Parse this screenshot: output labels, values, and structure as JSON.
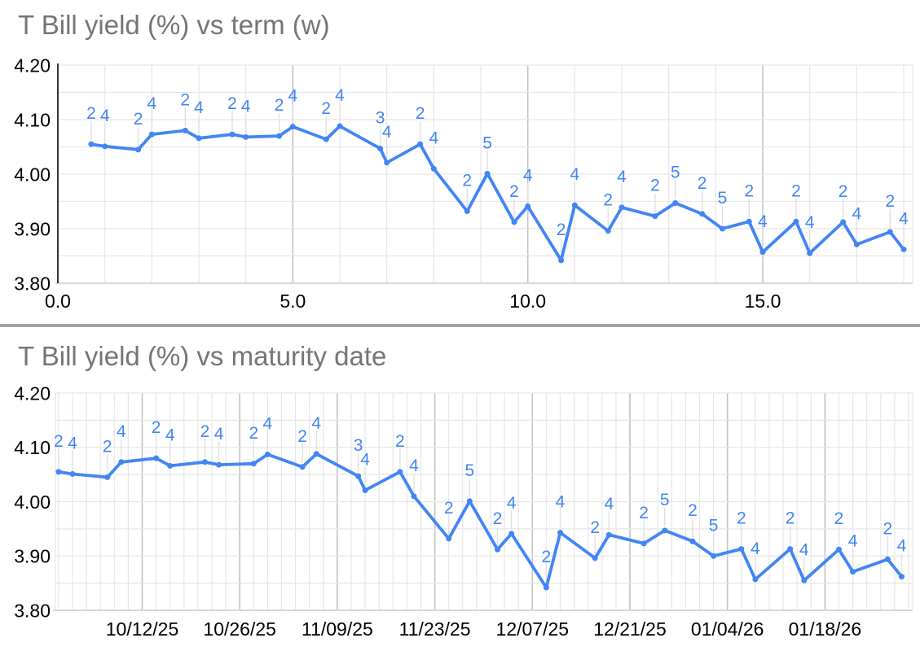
{
  "page": {
    "background": "#ffffff"
  },
  "colors": {
    "series": "#4285f4",
    "point_label": "#4285f4",
    "title": "#757575",
    "tick_label": "#000000",
    "grid_minor": "#e6e6e6",
    "grid_major": "#c3c3c3",
    "bottom_axis": "#d9d9d9",
    "zero_axis": "#212121",
    "leader_line": "#e0e0e0",
    "divider": "#a0a0a0"
  },
  "charts": [
    {
      "title": "T Bill yield (%) vs term (w)",
      "chart_data": {
        "type": "line",
        "xlabel": "term (w)",
        "ylabel": "T Bill yield (%)",
        "xlim": [
          0,
          18.2
        ],
        "ylim": [
          3.8,
          4.2
        ],
        "grid": true,
        "x_grid_step": 1,
        "y_grid_step": 0.05,
        "x_ticks": [
          0,
          5,
          10,
          15
        ],
        "x_tick_labels": [
          "0.0",
          "5.0",
          "10.0",
          "15.0"
        ],
        "y_ticks": [
          4.2,
          4.1,
          4.0,
          3.9,
          3.8
        ],
        "y_tick_labels": [
          "4.20",
          "4.10",
          "4.00",
          "3.90",
          "3.80"
        ],
        "x": [
          0.71,
          1.0,
          1.71,
          2.0,
          2.71,
          3.0,
          3.71,
          4.0,
          4.71,
          5.0,
          5.71,
          6.0,
          6.86,
          7.0,
          7.71,
          8.0,
          8.71,
          9.14,
          9.71,
          10.0,
          10.71,
          11.0,
          11.71,
          12.0,
          12.71,
          13.14,
          13.71,
          14.14,
          14.71,
          15.0,
          15.71,
          16.0,
          16.71,
          17.0,
          17.71,
          18.0
        ],
        "y": [
          4.055,
          4.051,
          4.045,
          4.073,
          4.08,
          4.066,
          4.073,
          4.068,
          4.07,
          4.087,
          4.064,
          4.088,
          4.047,
          4.021,
          4.055,
          4.01,
          3.932,
          4.001,
          3.912,
          3.941,
          3.842,
          3.943,
          3.896,
          3.939,
          3.923,
          3.947,
          3.927,
          3.9,
          3.913,
          3.857,
          3.913,
          3.855,
          3.912,
          3.871,
          3.894,
          3.862
        ],
        "point_labels": [
          "2",
          "4",
          "2",
          "4",
          "2",
          "4",
          "2",
          "4",
          "2",
          "4",
          "2",
          "4",
          "3",
          "4",
          "2",
          "4",
          "2",
          "5",
          "2",
          "4",
          "2",
          "4",
          "2",
          "4",
          "2",
          "5",
          "2",
          "5",
          "2",
          "4",
          "2",
          "4",
          "2",
          "4",
          "2",
          "4"
        ]
      }
    },
    {
      "title": "T Bill yield (%) vs maturity date",
      "chart_data": {
        "type": "line",
        "xlabel": "maturity date",
        "ylabel": "T Bill yield (%)",
        "ylim": [
          3.8,
          4.2
        ],
        "grid": true,
        "x_grid_step_days": 2,
        "x_major_step_days": 14,
        "y_grid_step": 0.05,
        "x_tick_dates": [
          "2025-10-12",
          "2025-10-26",
          "2025-11-09",
          "2025-11-23",
          "2025-12-07",
          "2025-12-21",
          "2026-01-04",
          "2026-01-18"
        ],
        "x_tick_labels": [
          "10/12/25",
          "10/26/25",
          "11/09/25",
          "11/23/25",
          "12/07/25",
          "12/21/25",
          "01/04/26",
          "01/18/26"
        ],
        "y_ticks": [
          4.2,
          4.1,
          4.0,
          3.9,
          3.8
        ],
        "y_tick_labels": [
          "4.20",
          "4.10",
          "4.00",
          "3.90",
          "3.80"
        ],
        "x_dates": [
          "2025-09-30",
          "2025-10-02",
          "2025-10-07",
          "2025-10-09",
          "2025-10-14",
          "2025-10-16",
          "2025-10-21",
          "2025-10-23",
          "2025-10-28",
          "2025-10-30",
          "2025-11-04",
          "2025-11-06",
          "2025-11-12",
          "2025-11-13",
          "2025-11-18",
          "2025-11-20",
          "2025-11-25",
          "2025-11-28",
          "2025-12-02",
          "2025-12-04",
          "2025-12-09",
          "2025-12-11",
          "2025-12-16",
          "2025-12-18",
          "2025-12-23",
          "2025-12-26",
          "2025-12-30",
          "2026-01-02",
          "2026-01-06",
          "2026-01-08",
          "2026-01-13",
          "2026-01-15",
          "2026-01-20",
          "2026-01-22",
          "2026-01-27",
          "2026-01-29"
        ],
        "y": [
          4.055,
          4.051,
          4.045,
          4.073,
          4.08,
          4.066,
          4.073,
          4.068,
          4.07,
          4.087,
          4.064,
          4.088,
          4.047,
          4.021,
          4.055,
          4.01,
          3.932,
          4.001,
          3.912,
          3.941,
          3.842,
          3.943,
          3.896,
          3.939,
          3.923,
          3.947,
          3.927,
          3.9,
          3.913,
          3.857,
          3.913,
          3.855,
          3.912,
          3.871,
          3.894,
          3.862
        ],
        "point_labels": [
          "2",
          "4",
          "2",
          "4",
          "2",
          "4",
          "2",
          "4",
          "2",
          "4",
          "2",
          "4",
          "3",
          "4",
          "2",
          "4",
          "2",
          "5",
          "2",
          "4",
          "2",
          "4",
          "2",
          "4",
          "2",
          "5",
          "2",
          "5",
          "2",
          "4",
          "2",
          "4",
          "2",
          "4",
          "2",
          "4"
        ]
      }
    }
  ]
}
